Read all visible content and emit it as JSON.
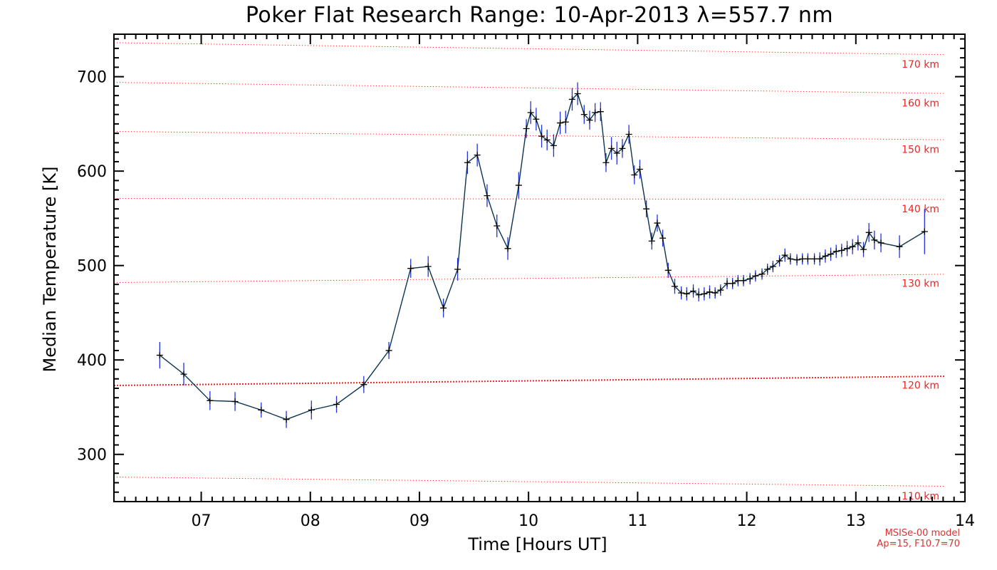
{
  "chart_data": {
    "type": "line",
    "title": "Poker Flat Research Range: 10-Apr-2013 λ=557.7 nm",
    "xlabel": "Time [Hours UT]",
    "ylabel": "Median Temperature [K]",
    "xlim": [
      6.2,
      14.0
    ],
    "ylim": [
      250,
      745
    ],
    "x_ticks": [
      7,
      8,
      9,
      10,
      11,
      12,
      13,
      14
    ],
    "x_tick_labels": [
      "07",
      "08",
      "09",
      "10",
      "11",
      "12",
      "13",
      "14"
    ],
    "y_ticks": [
      300,
      400,
      500,
      600,
      700
    ],
    "y_tick_labels": [
      "300",
      "400",
      "500",
      "600",
      "700"
    ],
    "series": [
      {
        "name": "Median Temperature",
        "color": "#0b3350",
        "errorbar_color": "#2233dd",
        "x": [
          6.62,
          6.84,
          7.08,
          7.31,
          7.55,
          7.78,
          8.01,
          8.24,
          8.49,
          8.72,
          8.92,
          9.08,
          9.22,
          9.35,
          9.44,
          9.53,
          9.62,
          9.71,
          9.81,
          9.91,
          9.98,
          10.02,
          10.07,
          10.12,
          10.17,
          10.23,
          10.29,
          10.34,
          10.4,
          10.45,
          10.51,
          10.56,
          10.61,
          10.66,
          10.71,
          10.76,
          10.81,
          10.86,
          10.92,
          10.97,
          11.02,
          11.08,
          11.13,
          11.18,
          11.23,
          11.28,
          11.34,
          11.4,
          11.45,
          11.51,
          11.56,
          11.61,
          11.66,
          11.71,
          11.76,
          11.82,
          11.87,
          11.92,
          11.97,
          12.03,
          12.08,
          12.14,
          12.19,
          12.24,
          12.3,
          12.35,
          12.4,
          12.46,
          12.51,
          12.56,
          12.62,
          12.67,
          12.72,
          12.77,
          12.82,
          12.87,
          12.92,
          12.97,
          13.02,
          13.07,
          13.12,
          13.17,
          13.23,
          13.4,
          13.63
        ],
        "values": [
          405,
          385,
          357,
          356,
          347,
          337,
          347,
          353,
          374,
          410,
          497,
          499,
          455,
          496,
          609,
          617,
          574,
          542,
          518,
          585,
          645,
          662,
          655,
          637,
          633,
          627,
          651,
          652,
          676,
          682,
          660,
          654,
          662,
          663,
          609,
          624,
          619,
          624,
          639,
          596,
          602,
          560,
          526,
          545,
          529,
          495,
          478,
          471,
          470,
          473,
          469,
          470,
          472,
          471,
          474,
          481,
          481,
          484,
          484,
          486,
          489,
          491,
          496,
          499,
          505,
          511,
          507,
          506,
          507,
          507,
          507,
          507,
          510,
          512,
          515,
          516,
          518,
          520,
          524,
          517,
          535,
          527,
          524,
          520,
          536
        ],
        "errors": [
          14,
          12,
          10,
          10,
          8,
          9,
          10,
          9,
          9,
          9,
          10,
          11,
          10,
          12,
          12,
          12,
          12,
          12,
          12,
          14,
          10,
          12,
          12,
          12,
          11,
          12,
          12,
          12,
          12,
          12,
          10,
          10,
          10,
          10,
          10,
          12,
          12,
          10,
          10,
          10,
          10,
          9,
          9,
          9,
          9,
          8,
          8,
          7,
          7,
          7,
          7,
          7,
          7,
          6,
          6,
          6,
          6,
          6,
          6,
          6,
          6,
          6,
          6,
          6,
          6,
          7,
          6,
          6,
          6,
          6,
          6,
          7,
          7,
          7,
          7,
          7,
          8,
          8,
          8,
          8,
          10,
          10,
          10,
          12,
          24
        ]
      }
    ],
    "model_lines": {
      "color": "#ee2222",
      "x": [
        6.2,
        14.0
      ],
      "lines": [
        {
          "label": "110 km",
          "values": [
            276,
            266
          ]
        },
        {
          "label": "120 km",
          "values": [
            373,
            383
          ]
        },
        {
          "label": "130 km",
          "values": [
            482,
            491
          ]
        },
        {
          "label": "140 km",
          "values": [
            571,
            570
          ]
        },
        {
          "label": "150 km",
          "values": [
            642,
            633
          ]
        },
        {
          "label": "160 km",
          "values": [
            694,
            682
          ]
        },
        {
          "label": "170 km",
          "values": [
            736,
            723
          ]
        }
      ]
    },
    "model_note": [
      "MSISe-00 model",
      "Ap=15, F10.7=70"
    ]
  }
}
